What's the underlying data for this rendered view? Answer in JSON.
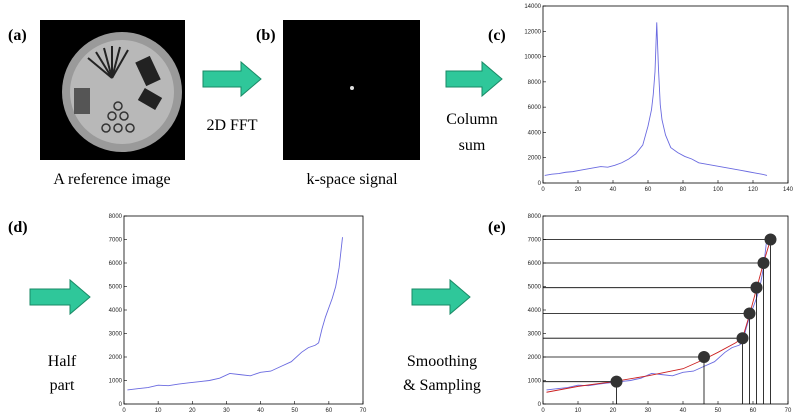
{
  "panel_labels": [
    "(a)",
    "(b)",
    "(c)",
    "(d)",
    "(e)"
  ],
  "captions": {
    "reference": "A reference image",
    "kspace": "k-space signal",
    "fft": "2D FFT",
    "column_sum": [
      "Column",
      "sum"
    ],
    "half_part": [
      "Half",
      "part"
    ],
    "smoothing": [
      "Smoothing",
      "& Sampling"
    ]
  },
  "chart_data": [
    {
      "type": "line",
      "xlim": [
        0,
        140
      ],
      "xticks": [
        0,
        20,
        40,
        60,
        80,
        100,
        120,
        140
      ],
      "ylim": [
        0,
        14000
      ],
      "yticks": [
        0,
        2000,
        4000,
        6000,
        8000,
        10000,
        12000,
        14000
      ],
      "x": [
        1,
        5,
        9,
        13,
        17,
        21,
        25,
        29,
        33,
        37,
        41,
        45,
        49,
        53,
        57,
        60,
        62,
        63,
        64,
        65,
        66,
        67,
        68,
        70,
        73,
        77,
        81,
        85,
        89,
        93,
        97,
        101,
        105,
        109,
        113,
        117,
        121,
        125,
        128
      ],
      "series": [
        {
          "color": "#6a6ae0",
          "values": [
            600,
            700,
            750,
            850,
            900,
            1000,
            1100,
            1200,
            1300,
            1250,
            1400,
            1600,
            1900,
            2300,
            3000,
            4500,
            5800,
            7000,
            8800,
            12700,
            9000,
            6200,
            5000,
            3800,
            2800,
            2400,
            2100,
            1900,
            1600,
            1500,
            1400,
            1300,
            1200,
            1100,
            1000,
            900,
            800,
            700,
            600
          ]
        }
      ]
    },
    {
      "type": "line",
      "xlim": [
        0,
        70
      ],
      "xticks": [
        0,
        10,
        20,
        30,
        40,
        50,
        60,
        70
      ],
      "ylim": [
        0,
        8000
      ],
      "yticks": [
        0,
        1000,
        2000,
        3000,
        4000,
        5000,
        6000,
        7000,
        8000
      ],
      "x": [
        1,
        4,
        7,
        10,
        13,
        16,
        19,
        22,
        25,
        28,
        31,
        34,
        37,
        40,
        43,
        46,
        49,
        52,
        54,
        56,
        57,
        58,
        59,
        60,
        61,
        62,
        63,
        64
      ],
      "series": [
        {
          "color": "#6a6ae0",
          "values": [
            600,
            650,
            700,
            800,
            780,
            850,
            900,
            950,
            1000,
            1100,
            1300,
            1250,
            1200,
            1350,
            1400,
            1600,
            1800,
            2200,
            2400,
            2500,
            2600,
            3200,
            3700,
            4100,
            4500,
            5000,
            5800,
            7100
          ]
        }
      ]
    },
    {
      "type": "line",
      "xlim": [
        0,
        70
      ],
      "xticks": [
        0,
        10,
        20,
        30,
        40,
        50,
        60,
        70
      ],
      "ylim": [
        0,
        8000
      ],
      "yticks": [
        0,
        1000,
        2000,
        3000,
        4000,
        5000,
        6000,
        7000,
        8000
      ],
      "x": [
        1,
        4,
        7,
        10,
        13,
        16,
        19,
        22,
        25,
        28,
        31,
        34,
        37,
        40,
        43,
        46,
        49,
        52,
        54,
        56,
        57,
        58,
        59,
        60,
        61,
        62,
        63,
        64
      ],
      "series": [
        {
          "color": "#6a6ae0",
          "values": [
            600,
            650,
            700,
            800,
            780,
            850,
            900,
            950,
            1000,
            1100,
            1300,
            1250,
            1200,
            1350,
            1400,
            1600,
            1800,
            2200,
            2400,
            2500,
            2600,
            3200,
            3700,
            4100,
            4500,
            5000,
            5800,
            7100
          ]
        },
        {
          "color": "#cc2020",
          "x": [
            1,
            10,
            20,
            30,
            40,
            46,
            50,
            55,
            57,
            59,
            61,
            63,
            65
          ],
          "values": [
            500,
            750,
            950,
            1200,
            1500,
            1900,
            2200,
            2600,
            2800,
            3800,
            4900,
            6000,
            7000
          ]
        },
        {
          "color": "#333333",
          "style": "points",
          "x": [
            21,
            46,
            57,
            59,
            61,
            63,
            65
          ],
          "values": [
            950,
            2000,
            2800,
            3850,
            4950,
            6000,
            7000
          ]
        }
      ]
    }
  ]
}
